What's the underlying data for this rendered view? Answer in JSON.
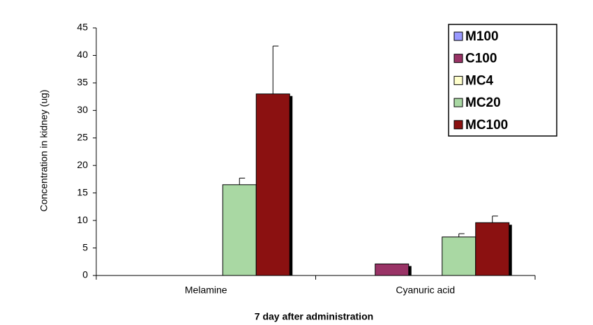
{
  "chart_data": {
    "type": "bar",
    "x_label": "7 day after administration",
    "y_label": "Concentration in kidney (ug)",
    "categories": [
      "Melamine",
      "Cyanuric acid"
    ],
    "series": [
      {
        "name": "M100",
        "color": "#9999ff",
        "values": [
          null,
          null
        ],
        "errors": [
          null,
          null
        ]
      },
      {
        "name": "C100",
        "color": "#993366",
        "values": [
          null,
          2.1
        ],
        "errors": [
          null,
          null
        ]
      },
      {
        "name": "MC4",
        "color": "#ffffcc",
        "values": [
          null,
          null
        ],
        "errors": [
          null,
          null
        ]
      },
      {
        "name": "MC20",
        "color": "#a9d8a3",
        "values": [
          16.5,
          7
        ],
        "errors": [
          1.2,
          0.6
        ]
      },
      {
        "name": "MC100",
        "color": "#8b1111",
        "values": [
          33,
          9.6
        ],
        "errors": [
          8.7,
          1.2
        ]
      }
    ],
    "ylim": [
      0,
      45
    ],
    "yticks": [
      0,
      5,
      10,
      15,
      20,
      25,
      30,
      35,
      40,
      45
    ],
    "legend": "top-right"
  }
}
